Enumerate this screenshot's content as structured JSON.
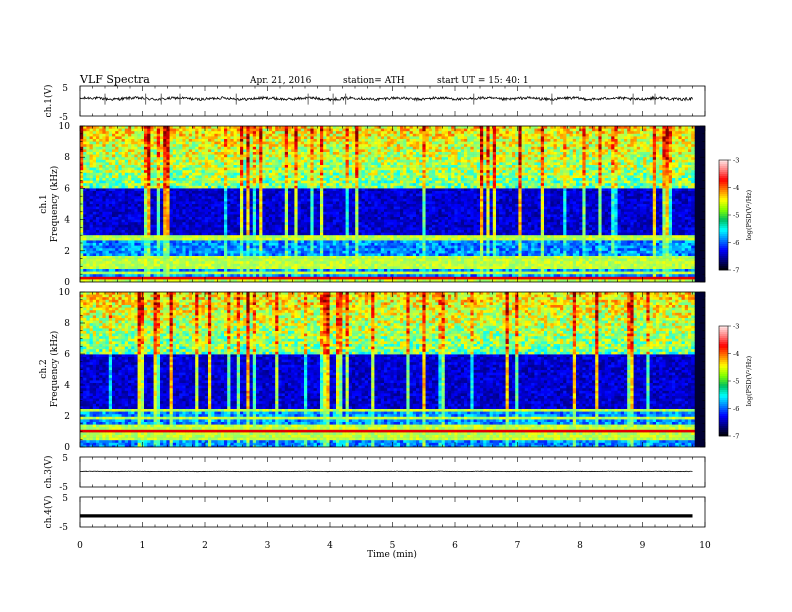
{
  "header": {
    "title": "VLF  Spectra",
    "date": "Apr. 21, 2016",
    "station": "station= ATH",
    "start": "start  UT  =   15: 40: 1"
  },
  "chart_data": [
    {
      "type": "line",
      "id": "ch1-waveform",
      "ylabel": "ch.1(V)",
      "ylim": [
        -5,
        5
      ],
      "yticks": [
        "5",
        "-5"
      ],
      "xlim": [
        0,
        10
      ],
      "trace_level": 0.8,
      "trace_end": 9.8,
      "spikes": [
        0.4,
        1.05,
        1.3,
        1.6,
        2.5,
        3.65,
        4.05,
        4.25,
        6.3,
        7.55,
        8.85,
        9.2
      ],
      "color": "#000000"
    },
    {
      "type": "heatmap",
      "id": "ch1-spectrogram",
      "ylabel": "ch.1\nFrequency (kHz)",
      "ylim": [
        0,
        10
      ],
      "yticks": [
        "0",
        "2",
        "4",
        "6",
        "8",
        "10"
      ],
      "xlim": [
        0,
        9.8
      ],
      "features": {
        "low_band": [
          0,
          3
        ],
        "gap_band": [
          3,
          6
        ],
        "high_band": [
          6,
          10
        ],
        "strong_line_khz": 0.2
      }
    },
    {
      "type": "heatmap",
      "id": "ch2-spectrogram",
      "ylabel": "ch.2\nFrequency (kHz)",
      "ylim": [
        0,
        10
      ],
      "yticks": [
        "0",
        "2",
        "4",
        "6",
        "8",
        "10"
      ],
      "xlim": [
        0,
        9.8
      ],
      "features": {
        "low_band": [
          0,
          2.5
        ],
        "gap_band": [
          2.5,
          6
        ],
        "high_band": [
          6,
          10
        ],
        "strong_line_khz": 1.0
      }
    },
    {
      "type": "line",
      "id": "ch3-waveform",
      "ylabel": "ch.3(V)",
      "ylim": [
        -5,
        5
      ],
      "yticks": [
        "5",
        "-5"
      ],
      "xlim": [
        0,
        10
      ],
      "trace_level": 0.2,
      "trace_end": 9.8,
      "color": "#000000"
    },
    {
      "type": "line",
      "id": "ch4-waveform",
      "ylabel": "ch.4(V)",
      "ylim": [
        -5,
        5
      ],
      "yticks": [
        "5",
        "-5"
      ],
      "xlim": [
        0,
        10
      ],
      "xlabel": "Time  (min)",
      "xticks": [
        "0",
        "1",
        "2",
        "3",
        "4",
        "5",
        "6",
        "7",
        "8",
        "9",
        "10"
      ],
      "trace_level": -1.3,
      "trace_end": 9.8,
      "thick": true,
      "color": "#000000"
    }
  ],
  "colorbars": [
    {
      "id": "colorbar-ch1",
      "ticks": [
        "-3",
        "-4",
        "-5",
        "-6",
        "-7"
      ],
      "label": "log(PSD(V²/Hz)",
      "range": [
        -7,
        -3
      ]
    },
    {
      "id": "colorbar-ch2",
      "ticks": [
        "-3",
        "-4",
        "-5",
        "-6",
        "-7"
      ],
      "label": "log(PSD(V²/Hz)",
      "range": [
        -7,
        -3
      ]
    }
  ],
  "colors": {
    "jet": [
      "#00007f",
      "#0000ff",
      "#007fff",
      "#00ffff",
      "#7fff7f",
      "#ffff00",
      "#ff7f00",
      "#ff0000",
      "#7f0000"
    ],
    "colorbar": [
      "#000000",
      "#00007f",
      "#0000ff",
      "#007fff",
      "#00ffff",
      "#00c060",
      "#7fff00",
      "#ffff00",
      "#ff7f00",
      "#ff0000",
      "#ff8080",
      "#ffe8e8"
    ]
  }
}
